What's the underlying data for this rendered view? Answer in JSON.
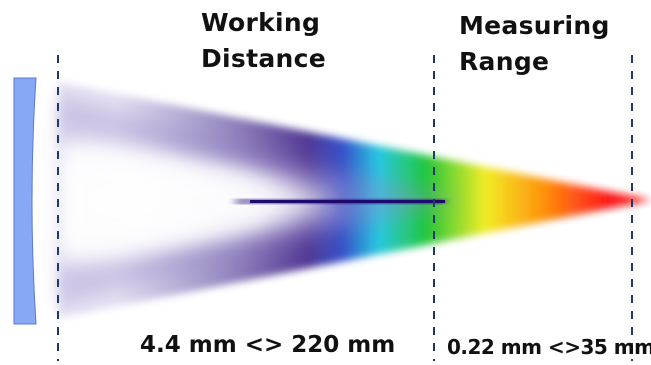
{
  "working_distance": {
    "title_line1": "Working",
    "title_line2": "Distance",
    "value": "4.4 mm <> 220 mm"
  },
  "measuring_range": {
    "title_line1": "Measuring",
    "title_line2": "Range",
    "value": "0.22 mm <>35 mm"
  },
  "colors": {
    "lens": "#86a8f5",
    "lens_edge": "#5a7bd0",
    "divider": "#1f3a68",
    "focus_line": "#1e0a6e"
  }
}
